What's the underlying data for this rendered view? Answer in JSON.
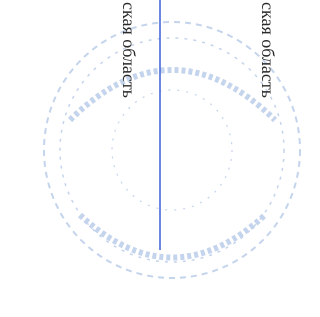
{
  "texts": {
    "left": "ская область",
    "right": "ская область"
  }
}
